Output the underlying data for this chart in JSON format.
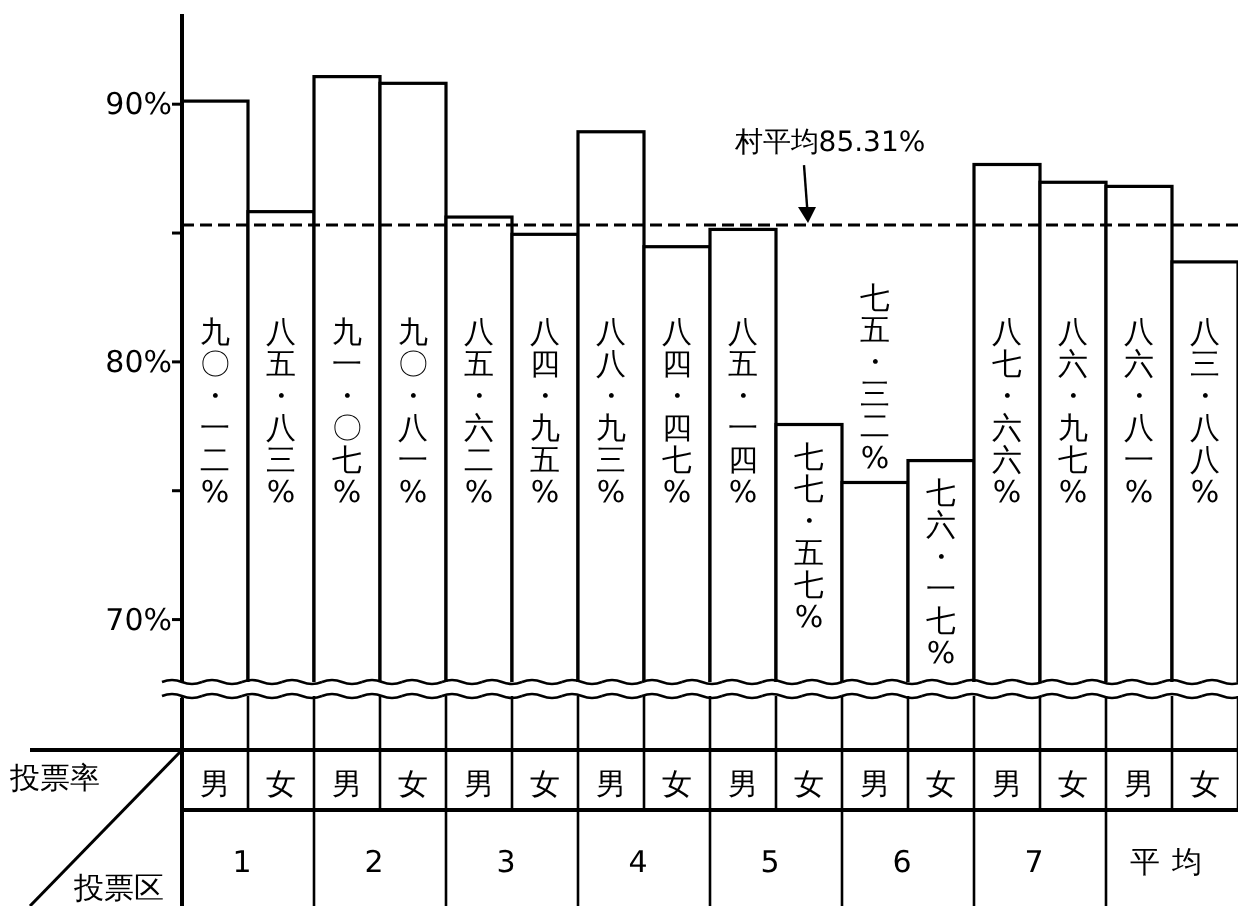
{
  "chart_data": {
    "type": "bar",
    "categories": [
      "男",
      "女",
      "男",
      "女",
      "男",
      "女",
      "男",
      "女",
      "男",
      "女",
      "男",
      "女",
      "男",
      "女",
      "男",
      "女"
    ],
    "values": [
      90.12,
      85.83,
      91.07,
      90.81,
      85.62,
      84.95,
      88.93,
      84.47,
      85.14,
      77.57,
      75.32,
      76.17,
      87.66,
      86.97,
      86.81,
      83.88
    ],
    "value_labels": [
      "九〇・一二%",
      "八五・八三%",
      "九一・〇七%",
      "九〇・八一%",
      "八五・六二%",
      "八四・九五%",
      "八八・九三%",
      "八四・四七%",
      "八五・一四%",
      "七七・五七%",
      "七五・三二%",
      "七六・一七%",
      "八七・六六%",
      "八六・九七%",
      "八六・八一%",
      "八三・八八%"
    ],
    "color": "#ffffff",
    "ylabel": "投票率",
    "xlabel": "投票区",
    "annotations": [
      "1",
      "2",
      "3",
      "4",
      "5",
      "6",
      "7",
      "平均"
    ],
    "ylim": [
      67.5,
      93.5
    ],
    "yticks": [
      {
        "value": 70,
        "label": "70%"
      },
      {
        "value": 75,
        "label": null
      },
      {
        "value": 80,
        "label": "80%"
      },
      {
        "value": 85,
        "label": null
      },
      {
        "value": 90,
        "label": "90%"
      }
    ],
    "ref_lines": [
      {
        "axis": "y",
        "value": 85.31,
        "label": "村平均85.31%",
        "line_style": "dashed"
      }
    ],
    "grid": false
  }
}
